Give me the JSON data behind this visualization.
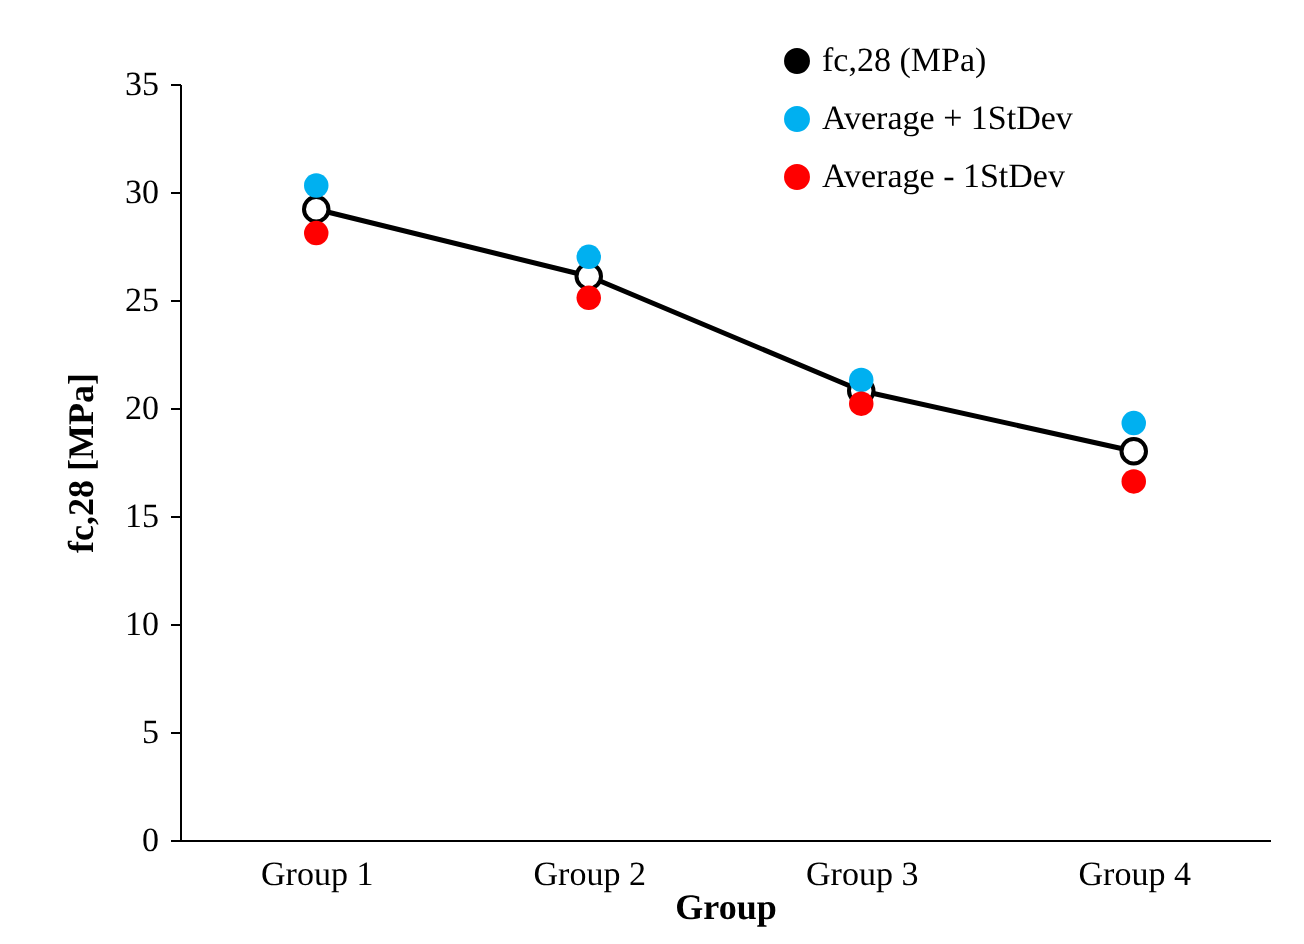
{
  "chart_data": {
    "type": "line",
    "xlabel": "Group",
    "ylabel": "fc,28 [MPa]",
    "categories": [
      "Group 1",
      "Group 2",
      "Group 3",
      "Group 4"
    ],
    "series": [
      {
        "name": "fc,28 (MPa)",
        "color": "#000000",
        "marker": "circle",
        "values": [
          29.2,
          26.1,
          20.8,
          18.0
        ]
      },
      {
        "name": "Average + 1StDev",
        "type": "scatter",
        "color": "#00b0f0",
        "values": [
          30.3,
          27.0,
          21.3,
          19.3
        ]
      },
      {
        "name": "Average - 1StDev",
        "type": "scatter",
        "color": "#ff0000",
        "values": [
          28.1,
          25.1,
          20.2,
          16.6
        ]
      }
    ],
    "ylim": [
      0,
      35
    ],
    "yticks": [
      0,
      5,
      10,
      15,
      20,
      25,
      30,
      35
    ],
    "grid": false,
    "legend": "top right"
  }
}
